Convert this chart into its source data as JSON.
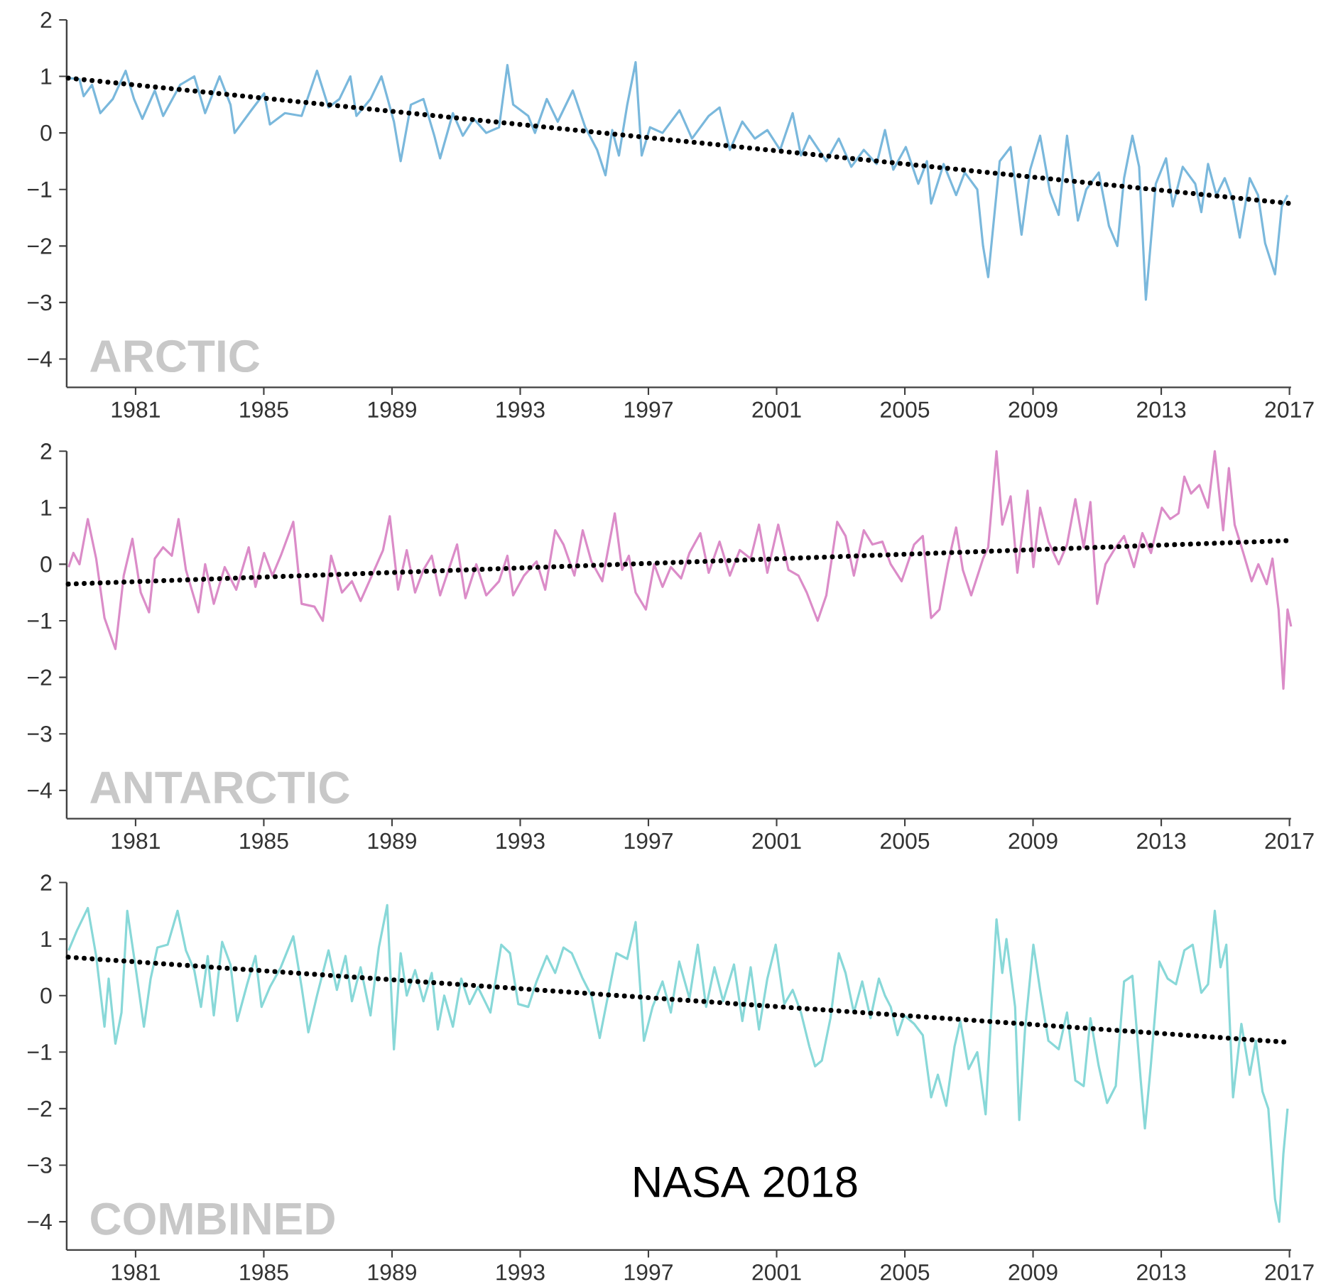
{
  "chart_data": [
    {
      "type": "line",
      "title": "ARCTIC",
      "xlim": [
        1978.85,
        2017.05
      ],
      "ylim": [
        -4.5,
        2
      ],
      "xticks": [
        1981,
        1985,
        1989,
        1993,
        1997,
        2001,
        2005,
        2009,
        2013,
        2017
      ],
      "yticks": [
        {
          "value": -4,
          "label": "−4"
        },
        {
          "value": -3,
          "label": "−3"
        },
        {
          "value": -2,
          "label": "−2"
        },
        {
          "value": -1,
          "label": "−1"
        },
        0,
        1,
        2
      ],
      "marker": "none",
      "series": [
        {
          "color": "#7ab8dc",
          "line_style": "solid",
          "x": [
            1978.91,
            1979.25,
            1979.38,
            1979.64,
            1979.9,
            1980.29,
            1980.69,
            1980.95,
            1981.21,
            1981.6,
            1981.86,
            1982.39,
            1982.83,
            1983.17,
            1983.62,
            1983.96,
            1984.09,
            1984.61,
            1985.01,
            1985.19,
            1985.66,
            1986.18,
            1986.66,
            1987.02,
            1987.36,
            1987.7,
            1987.89,
            1988.33,
            1988.67,
            1989.06,
            1989.27,
            1989.59,
            1989.98,
            1990.32,
            1990.5,
            1990.9,
            1991.21,
            1991.55,
            1991.94,
            1992.34,
            1992.6,
            1992.78,
            1993.25,
            1993.46,
            1993.83,
            1994.17,
            1994.64,
            1995.03,
            1995.4,
            1995.66,
            1995.87,
            1996.08,
            1996.34,
            1996.6,
            1996.79,
            1997.05,
            1997.44,
            1997.97,
            1998.36,
            1998.88,
            1999.22,
            1999.54,
            1999.93,
            2000.32,
            2000.71,
            2001.11,
            2001.5,
            2001.76,
            2002.02,
            2002.55,
            2002.94,
            2003.33,
            2003.72,
            2004.12,
            2004.38,
            2004.64,
            2005.03,
            2005.42,
            2005.69,
            2005.82,
            2006.21,
            2006.6,
            2006.87,
            2007.26,
            2007.44,
            2007.6,
            2007.96,
            2008.3,
            2008.64,
            2008.91,
            2009.22,
            2009.53,
            2009.8,
            2010.06,
            2010.4,
            2010.66,
            2011.05,
            2011.37,
            2011.63,
            2011.84,
            2012.1,
            2012.31,
            2012.52,
            2012.83,
            2013.15,
            2013.36,
            2013.67,
            2014.06,
            2014.25,
            2014.46,
            2014.72,
            2014.98,
            2015.24,
            2015.45,
            2015.76,
            2016.02,
            2016.24,
            2016.55,
            2016.76,
            2016.94
          ],
          "values": [
            0.97,
            0.95,
            0.65,
            0.85,
            0.35,
            0.6,
            1.1,
            0.6,
            0.25,
            0.75,
            0.3,
            0.85,
            1.0,
            0.35,
            1.0,
            0.5,
            0.0,
            0.4,
            0.7,
            0.15,
            0.35,
            0.3,
            1.1,
            0.45,
            0.6,
            1.0,
            0.3,
            0.6,
            1.0,
            0.2,
            -0.5,
            0.5,
            0.6,
            -0.05,
            -0.45,
            0.35,
            -0.05,
            0.25,
            0.0,
            0.1,
            1.2,
            0.5,
            0.3,
            0.0,
            0.6,
            0.2,
            0.75,
            0.1,
            -0.3,
            -0.75,
            0.05,
            -0.4,
            0.5,
            1.25,
            -0.4,
            0.1,
            0.0,
            0.4,
            -0.1,
            0.3,
            0.45,
            -0.3,
            0.2,
            -0.1,
            0.05,
            -0.3,
            0.35,
            -0.4,
            -0.05,
            -0.5,
            -0.1,
            -0.6,
            -0.3,
            -0.55,
            0.05,
            -0.65,
            -0.25,
            -0.9,
            -0.5,
            -1.25,
            -0.55,
            -1.1,
            -0.7,
            -1.0,
            -2.0,
            -2.55,
            -0.5,
            -0.25,
            -1.8,
            -0.65,
            -0.05,
            -1.05,
            -1.45,
            -0.05,
            -1.55,
            -1.0,
            -0.7,
            -1.65,
            -2.0,
            -0.8,
            -0.05,
            -0.6,
            -2.95,
            -0.9,
            -0.45,
            -1.3,
            -0.6,
            -0.9,
            -1.4,
            -0.55,
            -1.1,
            -0.8,
            -1.2,
            -1.85,
            -0.8,
            -1.1,
            -1.95,
            -2.5,
            -1.3,
            -1.1
          ]
        },
        {
          "type": "line",
          "color": "#000000",
          "line_style": "dotted",
          "x": [
            1978.9,
            2017.05
          ],
          "values": [
            0.97,
            -1.25
          ]
        }
      ]
    },
    {
      "type": "line",
      "title": "ANTARCTIC",
      "xlim": [
        1978.85,
        2017.05
      ],
      "ylim": [
        -4.5,
        2
      ],
      "xticks": [
        1981,
        1985,
        1989,
        1993,
        1997,
        2001,
        2005,
        2009,
        2013,
        2017
      ],
      "yticks": [
        {
          "value": -4,
          "label": "−4"
        },
        {
          "value": -3,
          "label": "−3"
        },
        {
          "value": -2,
          "label": "−2"
        },
        {
          "value": -1,
          "label": "−1"
        },
        0,
        1,
        2
      ],
      "marker": "none",
      "series": [
        {
          "color": "#db8cc8",
          "line_style": "solid",
          "x": [
            1978.91,
            1979.06,
            1979.25,
            1979.51,
            1979.77,
            1980.03,
            1980.37,
            1980.63,
            1980.9,
            1981.16,
            1981.42,
            1981.6,
            1981.86,
            1982.13,
            1982.34,
            1982.57,
            1982.96,
            1983.17,
            1983.44,
            1983.78,
            1984.14,
            1984.53,
            1984.74,
            1985.01,
            1985.27,
            1985.53,
            1985.92,
            1986.18,
            1986.58,
            1986.84,
            1987.1,
            1987.44,
            1987.75,
            1988.02,
            1988.41,
            1988.72,
            1988.93,
            1989.19,
            1989.46,
            1989.72,
            1989.98,
            1990.24,
            1990.5,
            1991.03,
            1991.29,
            1991.63,
            1991.94,
            1992.34,
            1992.6,
            1992.78,
            1993.12,
            1993.51,
            1993.78,
            1994.09,
            1994.35,
            1994.69,
            1994.95,
            1995.22,
            1995.56,
            1995.95,
            1996.18,
            1996.39,
            1996.6,
            1996.92,
            1997.18,
            1997.44,
            1997.7,
            1998.02,
            1998.28,
            1998.62,
            1998.88,
            1999.22,
            1999.54,
            1999.85,
            2000.19,
            2000.45,
            2000.71,
            2001.05,
            2001.37,
            2001.68,
            2001.94,
            2002.28,
            2002.55,
            2002.89,
            2003.15,
            2003.41,
            2003.72,
            2003.99,
            2004.3,
            2004.56,
            2004.9,
            2005.29,
            2005.56,
            2005.82,
            2006.08,
            2006.34,
            2006.6,
            2006.81,
            2007.07,
            2007.44,
            2007.6,
            2007.86,
            2008.04,
            2008.3,
            2008.51,
            2008.83,
            2009.01,
            2009.22,
            2009.48,
            2009.8,
            2010.06,
            2010.32,
            2010.58,
            2010.79,
            2011.0,
            2011.26,
            2011.58,
            2011.84,
            2012.15,
            2012.41,
            2012.68,
            2013.02,
            2013.28,
            2013.54,
            2013.72,
            2013.93,
            2014.19,
            2014.46,
            2014.67,
            2014.93,
            2015.11,
            2015.29,
            2015.56,
            2015.82,
            2016.03,
            2016.29,
            2016.47,
            2016.66,
            2016.81,
            2016.94,
            2017.05
          ],
          "values": [
            -0.05,
            0.2,
            0.0,
            0.8,
            0.1,
            -0.95,
            -1.5,
            -0.2,
            0.45,
            -0.5,
            -0.85,
            0.1,
            0.3,
            0.15,
            0.8,
            -0.1,
            -0.85,
            0.0,
            -0.7,
            -0.05,
            -0.45,
            0.3,
            -0.4,
            0.2,
            -0.2,
            0.15,
            0.75,
            -0.7,
            -0.75,
            -1.0,
            0.15,
            -0.5,
            -0.3,
            -0.65,
            -0.15,
            0.25,
            0.85,
            -0.45,
            0.25,
            -0.5,
            -0.1,
            0.15,
            -0.55,
            0.35,
            -0.6,
            0.0,
            -0.55,
            -0.3,
            0.15,
            -0.55,
            -0.2,
            0.05,
            -0.45,
            0.6,
            0.35,
            -0.2,
            0.6,
            0.05,
            -0.3,
            0.9,
            -0.1,
            0.15,
            -0.5,
            -0.8,
            0.0,
            -0.4,
            -0.05,
            -0.25,
            0.2,
            0.55,
            -0.15,
            0.4,
            -0.2,
            0.25,
            0.1,
            0.7,
            -0.15,
            0.7,
            -0.1,
            -0.2,
            -0.5,
            -1.0,
            -0.55,
            0.75,
            0.5,
            -0.2,
            0.6,
            0.35,
            0.4,
            0.0,
            -0.3,
            0.35,
            0.5,
            -0.95,
            -0.8,
            0.0,
            0.65,
            -0.1,
            -0.55,
            0.1,
            0.3,
            2.0,
            0.7,
            1.2,
            -0.15,
            1.3,
            -0.05,
            1.0,
            0.4,
            0.0,
            0.35,
            1.15,
            0.3,
            1.1,
            -0.7,
            0.0,
            0.3,
            0.5,
            -0.05,
            0.55,
            0.2,
            1.0,
            0.8,
            0.9,
            1.55,
            1.25,
            1.4,
            1.0,
            2.0,
            0.6,
            1.7,
            0.7,
            0.2,
            -0.3,
            0.0,
            -0.35,
            0.1,
            -0.8,
            -2.2,
            -0.8,
            -1.1
          ]
        },
        {
          "type": "line",
          "color": "#000000",
          "line_style": "dotted",
          "x": [
            1978.9,
            2017.05
          ],
          "values": [
            -0.35,
            0.42
          ]
        }
      ]
    },
    {
      "type": "line",
      "title": "COMBINED",
      "xlim": [
        1978.85,
        2017.05
      ],
      "ylim": [
        -4.5,
        2
      ],
      "xticks": [
        1981,
        1985,
        1989,
        1993,
        1997,
        2001,
        2005,
        2009,
        2013,
        2017
      ],
      "yticks": [
        {
          "value": -4,
          "label": "−4"
        },
        {
          "value": -3,
          "label": "−3"
        },
        {
          "value": -2,
          "label": "−2"
        },
        {
          "value": -1,
          "label": "−1"
        },
        0,
        1,
        2
      ],
      "marker": "none",
      "annotations": [
        "NASA 2018"
      ],
      "series": [
        {
          "color": "#88d8d8",
          "line_style": "solid",
          "x": [
            1978.91,
            1979.17,
            1979.51,
            1979.77,
            1980.03,
            1980.16,
            1980.37,
            1980.56,
            1980.74,
            1981.0,
            1981.26,
            1981.47,
            1981.68,
            1982.0,
            1982.31,
            1982.57,
            1982.83,
            1983.04,
            1983.25,
            1983.44,
            1983.7,
            1983.96,
            1984.17,
            1984.48,
            1984.74,
            1984.93,
            1985.19,
            1985.53,
            1985.92,
            1986.18,
            1986.39,
            1986.66,
            1987.02,
            1987.28,
            1987.55,
            1987.75,
            1988.02,
            1988.33,
            1988.59,
            1988.85,
            1989.06,
            1989.27,
            1989.46,
            1989.72,
            1989.98,
            1990.24,
            1990.43,
            1990.63,
            1990.9,
            1991.16,
            1991.42,
            1991.68,
            1992.07,
            1992.41,
            1992.68,
            1992.94,
            1993.25,
            1993.51,
            1993.83,
            1994.09,
            1994.35,
            1994.61,
            1994.95,
            1995.22,
            1995.48,
            1995.74,
            1996.0,
            1996.34,
            1996.6,
            1996.86,
            1997.13,
            1997.44,
            1997.7,
            1997.96,
            1998.28,
            1998.54,
            1998.8,
            1999.06,
            1999.33,
            1999.67,
            1999.93,
            2000.19,
            2000.45,
            2000.71,
            2000.97,
            2001.24,
            2001.5,
            2001.76,
            2002.02,
            2002.2,
            2002.41,
            2002.68,
            2002.94,
            2003.15,
            2003.41,
            2003.67,
            2003.93,
            2004.19,
            2004.38,
            2004.56,
            2004.77,
            2004.98,
            2005.29,
            2005.56,
            2005.82,
            2006.03,
            2006.29,
            2006.55,
            2006.73,
            2006.99,
            2007.26,
            2007.52,
            2007.86,
            2008.04,
            2008.17,
            2008.44,
            2008.57,
            2008.75,
            2009.01,
            2009.22,
            2009.48,
            2009.8,
            2010.06,
            2010.32,
            2010.58,
            2010.79,
            2011.05,
            2011.31,
            2011.58,
            2011.84,
            2012.1,
            2012.36,
            2012.49,
            2012.68,
            2012.94,
            2013.2,
            2013.46,
            2013.72,
            2013.98,
            2014.25,
            2014.46,
            2014.67,
            2014.85,
            2015.03,
            2015.24,
            2015.5,
            2015.76,
            2015.95,
            2016.16,
            2016.34,
            2016.55,
            2016.68,
            2016.81,
            2016.94
          ],
          "values": [
            0.8,
            1.15,
            1.55,
            0.7,
            -0.55,
            0.3,
            -0.85,
            -0.3,
            1.5,
            0.5,
            -0.55,
            0.3,
            0.85,
            0.9,
            1.5,
            0.8,
            0.45,
            -0.2,
            0.7,
            -0.35,
            0.95,
            0.55,
            -0.45,
            0.2,
            0.7,
            -0.2,
            0.15,
            0.5,
            1.05,
            0.15,
            -0.65,
            0.0,
            0.8,
            0.1,
            0.7,
            -0.1,
            0.5,
            -0.35,
            0.85,
            1.6,
            -0.95,
            0.75,
            0.0,
            0.45,
            -0.1,
            0.4,
            -0.6,
            0.0,
            -0.55,
            0.3,
            -0.15,
            0.15,
            -0.3,
            0.9,
            0.75,
            -0.15,
            -0.2,
            0.25,
            0.7,
            0.4,
            0.85,
            0.75,
            0.3,
            0.0,
            -0.75,
            0.0,
            0.75,
            0.65,
            1.3,
            -0.8,
            -0.2,
            0.25,
            -0.3,
            0.6,
            -0.05,
            0.9,
            -0.2,
            0.5,
            -0.1,
            0.55,
            -0.45,
            0.5,
            -0.6,
            0.3,
            0.9,
            -0.15,
            0.1,
            -0.3,
            -0.9,
            -1.25,
            -1.15,
            -0.4,
            0.75,
            0.4,
            -0.3,
            0.25,
            -0.4,
            0.3,
            0.0,
            -0.2,
            -0.7,
            -0.35,
            -0.5,
            -0.7,
            -1.8,
            -1.4,
            -1.95,
            -0.9,
            -0.45,
            -1.3,
            -1.0,
            -2.1,
            1.35,
            0.4,
            1.0,
            -0.2,
            -2.2,
            -0.6,
            0.9,
            0.1,
            -0.8,
            -0.95,
            -0.3,
            -1.5,
            -1.6,
            -0.4,
            -1.25,
            -1.9,
            -1.6,
            0.25,
            0.35,
            -1.5,
            -2.35,
            -1.2,
            0.6,
            0.3,
            0.2,
            0.8,
            0.9,
            0.05,
            0.2,
            1.5,
            0.5,
            0.9,
            -1.8,
            -0.5,
            -1.4,
            -0.8,
            -1.7,
            -2.0,
            -3.6,
            -4.0,
            -2.8,
            -2.0
          ]
        },
        {
          "type": "line",
          "color": "#000000",
          "line_style": "dotted",
          "x": [
            1978.9,
            2017.05
          ],
          "values": [
            0.68,
            -0.83
          ]
        }
      ]
    }
  ]
}
